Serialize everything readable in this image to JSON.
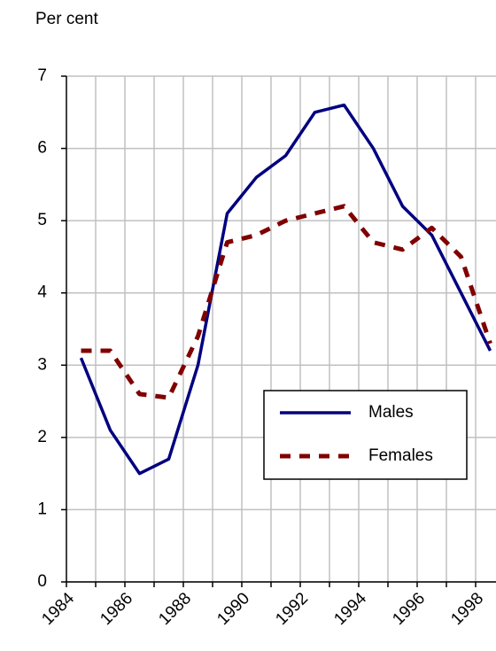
{
  "chart_data": {
    "type": "line",
    "y_label": "Per cent",
    "categories": [
      "1984",
      null,
      "1986",
      null,
      "1988",
      null,
      "1990",
      null,
      "1992",
      null,
      "1994",
      null,
      "1996",
      null,
      "1998"
    ],
    "series": [
      {
        "name": "Males",
        "color": "#000080",
        "dash": false,
        "values": [
          3.1,
          2.1,
          1.5,
          1.7,
          3.0,
          5.1,
          5.6,
          5.9,
          6.5,
          6.6,
          6.0,
          5.2,
          4.8,
          4.0,
          3.2
        ]
      },
      {
        "name": "Females",
        "color": "#800000",
        "dash": true,
        "values": [
          3.2,
          3.2,
          2.6,
          2.55,
          3.4,
          4.7,
          4.8,
          5.0,
          5.1,
          5.2,
          4.7,
          4.6,
          4.9,
          4.5,
          3.3
        ]
      }
    ],
    "ylim": [
      0,
      7
    ],
    "yticks": [
      0,
      1,
      2,
      3,
      4,
      5,
      6,
      7
    ],
    "grid": true,
    "legend_position": "right"
  }
}
